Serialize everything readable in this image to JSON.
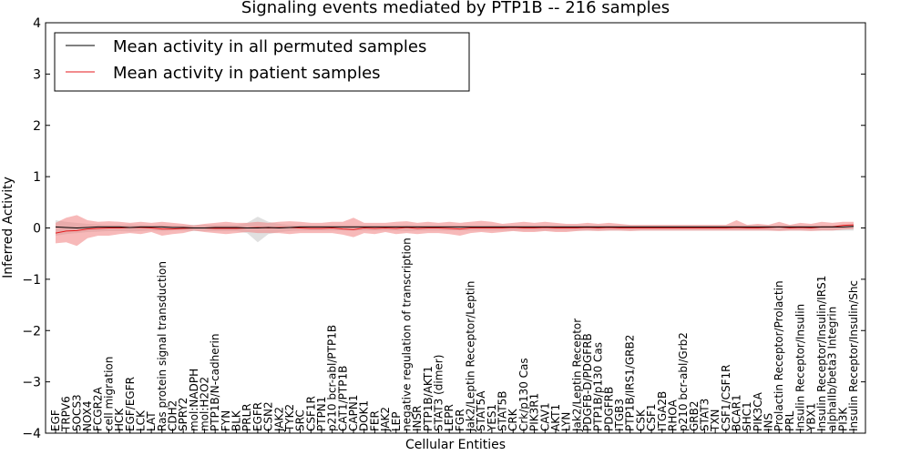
{
  "chart_data": {
    "type": "line",
    "title": "Signaling events mediated by PTP1B -- 216 samples",
    "xlabel": "Cellular Entities",
    "ylabel": "Inferred Activity",
    "ylim": [
      -4,
      4
    ],
    "yticks": [
      -4,
      -3,
      -2,
      -1,
      0,
      1,
      2,
      3,
      4
    ],
    "legend_position": "top-left",
    "categories": [
      "EGF",
      "TRPV6",
      "SOCS3",
      "NOX4",
      "FCGR2A",
      "cell migration",
      "HCK",
      "EGF/EGFR",
      "LCK",
      "LAT",
      "Ras protein signal transduction",
      "CDH2",
      "SPRY2",
      "mol:NADPH",
      "mol:H2O2",
      "PTP1B/N-cadherin",
      "FYN",
      "BLK",
      "PRLR",
      "EGFR",
      "CSN2",
      "JAK2",
      "TYK2",
      "SRC",
      "CSF1R",
      "PTPN1",
      "p210 bcr-abl/PTP1B",
      "CAT1/PTP1B",
      "CAPN1",
      "DOK1",
      "FER",
      "JAK2",
      "LEP",
      "negative regulation of transcription",
      "INSR",
      "PTP1B/AKT1",
      "STAT3 (dimer)",
      "LEPR",
      "FGR",
      "Jak2/Leptin Receptor/Leptin",
      "STAT5A",
      "YES1",
      "STAT5B",
      "CRK",
      "Crk/p130 Cas",
      "PIK3R1",
      "CAV1",
      "AKT1",
      "LYN",
      "Jak2/Leptin Receptor",
      "PDGFB-D/PDGFRB",
      "PTP1B/p130 Cas",
      "PDGFRB",
      "ITGB3",
      "PTP1B/IRS1/GRB2",
      "CSK",
      "CSF1",
      "ITGA2B",
      "RHOA",
      "p210 bcr-abl/Grb2",
      "GRB2",
      "STAT3",
      "TXN",
      "CSF1/CSF1R",
      "BCAR1",
      "SHC1",
      "PIK3CA",
      "INS",
      "Prolactin Receptor/Prolactin",
      "PRL",
      "Insulin Receptor/Insulin",
      "YBX1",
      "Insulin Receptor/Insulin/IRS1",
      "alphaIIb/beta3 Integrin",
      "PI3K",
      "Insulin Receptor/Insulin/Shc"
    ],
    "series": [
      {
        "name": "Mean activity in all permuted samples",
        "color": "#000000",
        "values": [
          0.02,
          0.01,
          0.0,
          0.01,
          0.02,
          0.02,
          0.02,
          0.01,
          0.02,
          0.02,
          0.02,
          0.01,
          0.01,
          0.0,
          0.0,
          0.01,
          0.01,
          0.01,
          0.0,
          0.0,
          0.01,
          0.0,
          0.01,
          0.02,
          0.02,
          0.02,
          0.02,
          0.02,
          0.02,
          0.02,
          0.02,
          0.02,
          0.02,
          0.02,
          0.02,
          0.02,
          0.02,
          0.02,
          0.02,
          0.02,
          0.02,
          0.02,
          0.02,
          0.02,
          0.02,
          0.02,
          0.02,
          0.02,
          0.02,
          0.02,
          0.02,
          0.02,
          0.02,
          0.02,
          0.02,
          0.02,
          0.02,
          0.02,
          0.02,
          0.02,
          0.02,
          0.02,
          0.02,
          0.02,
          0.02,
          0.02,
          0.02,
          0.02,
          0.02,
          0.02,
          0.02,
          0.02,
          0.02,
          0.02,
          0.02,
          0.03
        ],
        "band_lower": [
          -0.15,
          -0.12,
          -0.1,
          -0.08,
          -0.07,
          -0.06,
          -0.06,
          -0.07,
          -0.06,
          -0.05,
          -0.06,
          -0.05,
          -0.05,
          -0.06,
          -0.06,
          -0.06,
          -0.06,
          -0.06,
          -0.1,
          -0.28,
          -0.12,
          -0.08,
          -0.06,
          -0.05,
          -0.05,
          -0.05,
          -0.05,
          -0.05,
          -0.05,
          -0.05,
          -0.05,
          -0.05,
          -0.05,
          -0.06,
          -0.05,
          -0.05,
          -0.05,
          -0.05,
          -0.05,
          -0.05,
          -0.05,
          -0.05,
          -0.05,
          -0.05,
          -0.05,
          -0.05,
          -0.05,
          -0.05,
          -0.05,
          -0.05,
          -0.05,
          -0.05,
          -0.05,
          -0.05,
          -0.05,
          -0.05,
          -0.05,
          -0.05,
          -0.05,
          -0.05,
          -0.05,
          -0.05,
          -0.05,
          -0.05,
          -0.05,
          -0.05,
          -0.05,
          -0.05,
          -0.05,
          -0.05,
          -0.05,
          -0.05,
          -0.05,
          -0.05,
          -0.05,
          -0.05
        ],
        "band_upper": [
          0.15,
          0.12,
          0.1,
          0.08,
          0.07,
          0.06,
          0.06,
          0.07,
          0.06,
          0.05,
          0.06,
          0.05,
          0.05,
          0.06,
          0.06,
          0.06,
          0.06,
          0.06,
          0.1,
          0.22,
          0.12,
          0.08,
          0.06,
          0.05,
          0.05,
          0.05,
          0.05,
          0.05,
          0.05,
          0.05,
          0.05,
          0.05,
          0.05,
          0.06,
          0.05,
          0.05,
          0.05,
          0.05,
          0.05,
          0.05,
          0.05,
          0.05,
          0.05,
          0.05,
          0.05,
          0.05,
          0.05,
          0.05,
          0.05,
          0.05,
          0.05,
          0.05,
          0.05,
          0.05,
          0.05,
          0.05,
          0.05,
          0.05,
          0.05,
          0.05,
          0.05,
          0.05,
          0.05,
          0.05,
          0.05,
          0.05,
          0.05,
          0.05,
          0.05,
          0.05,
          0.05,
          0.05,
          0.05,
          0.05,
          0.05,
          0.05
        ],
        "band_color": "#cccccc"
      },
      {
        "name": "Mean activity in patient samples",
        "color": "#e41a1c",
        "values": [
          -0.1,
          -0.06,
          -0.05,
          -0.02,
          -0.01,
          0.0,
          0.0,
          0.01,
          0.01,
          0.0,
          -0.02,
          -0.02,
          -0.01,
          0.0,
          0.0,
          -0.01,
          -0.01,
          -0.01,
          0.0,
          0.01,
          0.0,
          0.01,
          0.01,
          0.0,
          -0.01,
          -0.01,
          0.0,
          -0.02,
          -0.03,
          0.0,
          -0.01,
          0.0,
          -0.01,
          0.01,
          -0.01,
          0.0,
          0.0,
          -0.01,
          -0.02,
          0.0,
          0.0,
          0.0,
          0.0,
          0.01,
          0.0,
          0.0,
          0.01,
          0.0,
          0.0,
          0.0,
          0.01,
          0.0,
          0.01,
          0.0,
          0.0,
          0.0,
          0.0,
          0.0,
          0.0,
          0.0,
          0.0,
          0.0,
          0.0,
          0.0,
          0.01,
          0.0,
          0.0,
          0.01,
          0.02,
          0.0,
          0.01,
          0.0,
          0.02,
          0.02,
          0.05,
          0.06
        ],
        "band_lower": [
          -0.3,
          -0.28,
          -0.35,
          -0.2,
          -0.15,
          -0.15,
          -0.12,
          -0.1,
          -0.12,
          -0.08,
          -0.15,
          -0.12,
          -0.1,
          -0.05,
          -0.08,
          -0.1,
          -0.12,
          -0.1,
          -0.08,
          -0.1,
          -0.1,
          -0.1,
          -0.12,
          -0.1,
          -0.1,
          -0.1,
          -0.1,
          -0.13,
          -0.18,
          -0.1,
          -0.12,
          -0.08,
          -0.12,
          -0.1,
          -0.12,
          -0.1,
          -0.1,
          -0.12,
          -0.15,
          -0.1,
          -0.08,
          -0.1,
          -0.08,
          -0.06,
          -0.08,
          -0.08,
          -0.06,
          -0.08,
          -0.08,
          -0.06,
          -0.05,
          -0.06,
          -0.05,
          -0.05,
          -0.06,
          -0.05,
          -0.05,
          -0.05,
          -0.05,
          -0.05,
          -0.05,
          -0.05,
          -0.05,
          -0.05,
          -0.05,
          -0.05,
          -0.05,
          -0.05,
          -0.06,
          -0.05,
          -0.05,
          -0.06,
          -0.05,
          -0.05,
          -0.03,
          -0.02
        ],
        "band_upper": [
          0.1,
          0.2,
          0.25,
          0.15,
          0.12,
          0.13,
          0.12,
          0.1,
          0.12,
          0.1,
          0.12,
          0.1,
          0.08,
          0.05,
          0.08,
          0.1,
          0.12,
          0.1,
          0.1,
          0.12,
          0.1,
          0.12,
          0.13,
          0.12,
          0.1,
          0.1,
          0.12,
          0.12,
          0.2,
          0.1,
          0.1,
          0.1,
          0.12,
          0.13,
          0.1,
          0.12,
          0.1,
          0.12,
          0.1,
          0.12,
          0.14,
          0.12,
          0.08,
          0.1,
          0.12,
          0.1,
          0.12,
          0.1,
          0.08,
          0.08,
          0.1,
          0.08,
          0.1,
          0.08,
          0.06,
          0.06,
          0.06,
          0.06,
          0.06,
          0.06,
          0.06,
          0.06,
          0.06,
          0.06,
          0.15,
          0.06,
          0.08,
          0.06,
          0.12,
          0.06,
          0.1,
          0.08,
          0.12,
          0.1,
          0.12,
          0.12
        ],
        "band_color": "#f08080"
      }
    ]
  }
}
